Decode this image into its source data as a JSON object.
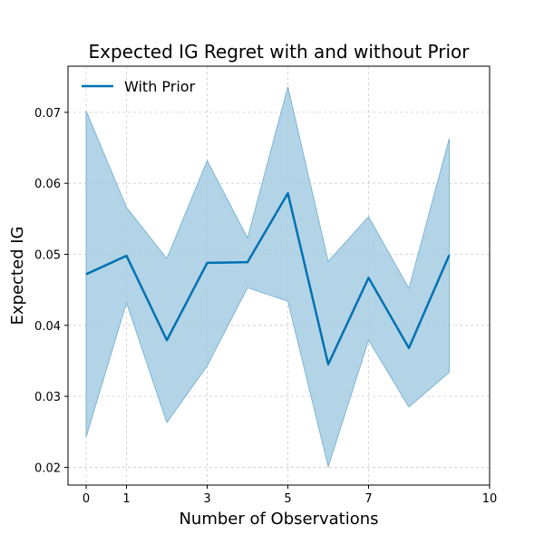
{
  "chart_data": {
    "type": "line",
    "title": "Expected IG Regret with and without Prior",
    "xlabel": "Number of Observations",
    "ylabel": "Expected IG",
    "xlim": [
      -0.45,
      10
    ],
    "ylim": [
      0.0175,
      0.0765
    ],
    "xticks": [
      0,
      1,
      3,
      5,
      7,
      10
    ],
    "yticks": [
      0.02,
      0.03,
      0.04,
      0.05,
      0.06,
      0.07
    ],
    "ytick_labels": [
      "0.02",
      "0.03",
      "0.04",
      "0.05",
      "0.06",
      "0.07"
    ],
    "grid": true,
    "legend_position": "top-left",
    "series": [
      {
        "name": "With Prior",
        "color": "#0072b2",
        "band_color": "#a6cde3",
        "x": [
          0,
          1,
          2,
          3,
          4,
          5,
          6,
          7,
          8,
          9
        ],
        "y": [
          0.0472,
          0.0498,
          0.0379,
          0.0488,
          0.0489,
          0.0586,
          0.0345,
          0.0467,
          0.0368,
          0.0499
        ],
        "lower": [
          0.0243,
          0.0432,
          0.0263,
          0.0343,
          0.0453,
          0.0434,
          0.0201,
          0.0379,
          0.0285,
          0.0334
        ],
        "upper": [
          0.0702,
          0.0566,
          0.0494,
          0.0632,
          0.0523,
          0.0736,
          0.049,
          0.0553,
          0.0452,
          0.0663
        ]
      }
    ]
  }
}
